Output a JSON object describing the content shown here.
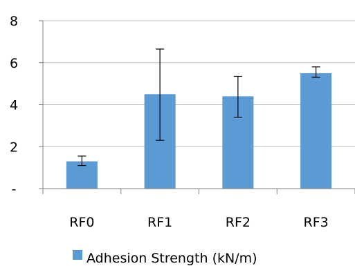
{
  "chart_data": {
    "type": "bar",
    "categories": [
      "RF0",
      "RF1",
      "RF2",
      "RF3"
    ],
    "series": [
      {
        "name": "Adhesion Strength (kN/m)",
        "values": [
          1.3,
          4.5,
          4.4,
          5.5
        ],
        "error_low": [
          1.1,
          2.3,
          3.4,
          5.3
        ],
        "error_high": [
          1.55,
          6.65,
          5.35,
          5.8
        ]
      }
    ],
    "y_ticks": [
      {
        "value": 0,
        "label": "-"
      },
      {
        "value": 2,
        "label": "2"
      },
      {
        "value": 4,
        "label": "4"
      },
      {
        "value": 6,
        "label": "6"
      },
      {
        "value": 8,
        "label": "8"
      }
    ],
    "ylim": [
      0,
      8
    ],
    "grid": true,
    "legend_position": "bottom",
    "colors": {
      "bar": "#5b9bd5",
      "grid": "#bfbfbf",
      "axis": "#7f7f7f",
      "error": "#000000"
    }
  }
}
